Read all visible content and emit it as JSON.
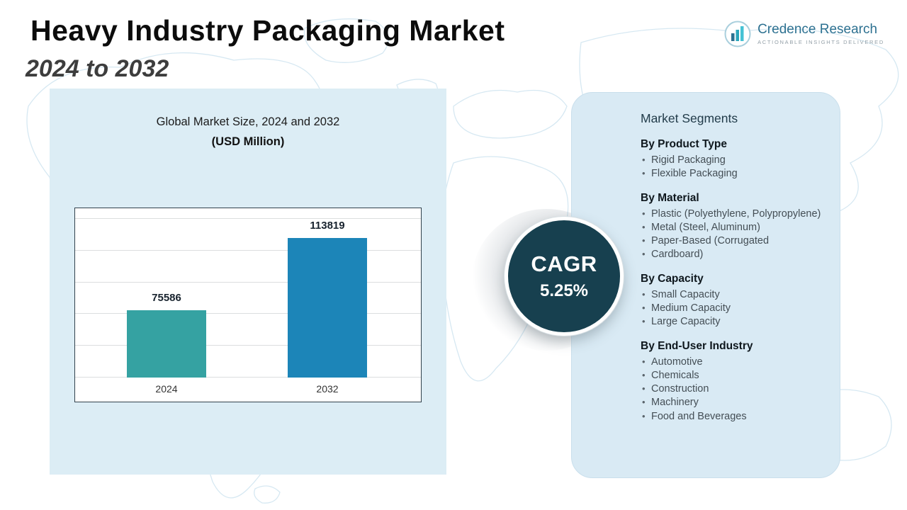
{
  "header": {
    "title": "Heavy Industry Packaging Market",
    "subtitle": "2024 to 2032"
  },
  "logo": {
    "name": "Credence Research",
    "tagline": "Actionable Insights Delivered"
  },
  "chart_data": {
    "type": "bar",
    "title": "Global Market Size, 2024 and 2032",
    "units_label": "(USD Million)",
    "categories": [
      "2024",
      "2032"
    ],
    "values": [
      75586,
      113819
    ],
    "bar_colors": [
      "#35a2a2",
      "#1c85b8"
    ],
    "ylim": [
      40000,
      125000
    ],
    "grid": true,
    "legend": false
  },
  "cagr": {
    "label": "CAGR",
    "value": "5.25%"
  },
  "segments": {
    "title": "Market Segments",
    "groups": [
      {
        "heading": "By Product Type",
        "items": [
          "Rigid Packaging",
          "Flexible Packaging"
        ]
      },
      {
        "heading": "By Material",
        "items": [
          "Plastic (Polyethylene, Polypropylene)",
          "Metal (Steel, Aluminum)",
          "Paper-Based (Corrugated",
          "Cardboard)"
        ]
      },
      {
        "heading": "By Capacity",
        "items": [
          "Small Capacity",
          "Medium Capacity",
          "Large Capacity"
        ]
      },
      {
        "heading": "By End-User Industry",
        "items": [
          "Automotive",
          "Chemicals",
          "Construction",
          "Machinery",
          "Food and Beverages"
        ]
      }
    ]
  }
}
